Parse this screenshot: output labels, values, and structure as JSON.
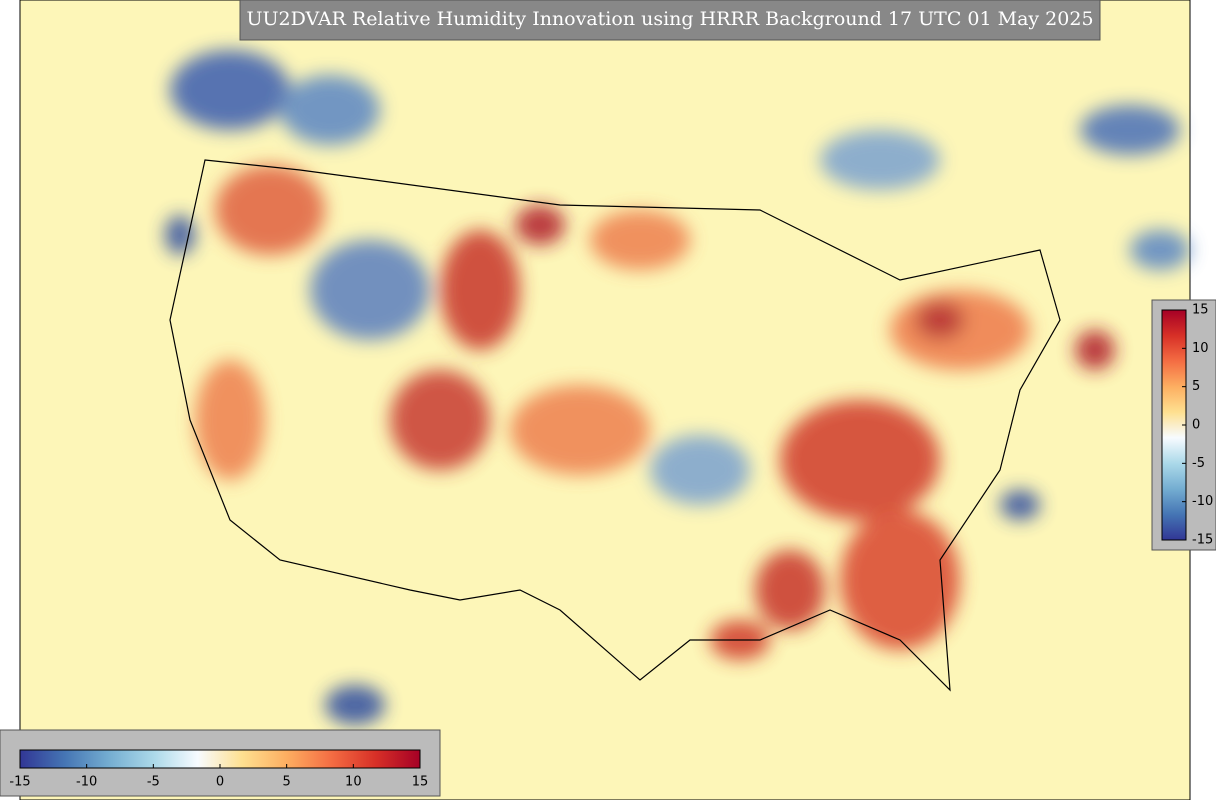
{
  "title": "UU2DVAR Relative Humidity Innovation using HRRR Background 17 UTC 01 May 2025",
  "colorbar": {
    "range": [
      -15,
      15
    ],
    "colormap": [
      "#313695",
      "#4575b4",
      "#74add1",
      "#abd9e9",
      "#f7fbff",
      "#fee090",
      "#fdae61",
      "#f46d43",
      "#d73027",
      "#a50026"
    ],
    "right_ticks": [
      15,
      10,
      5,
      0,
      -5,
      -10,
      -15
    ],
    "bottom_ticks": [
      -15,
      -10,
      -5,
      0,
      5,
      10,
      15
    ]
  }
}
